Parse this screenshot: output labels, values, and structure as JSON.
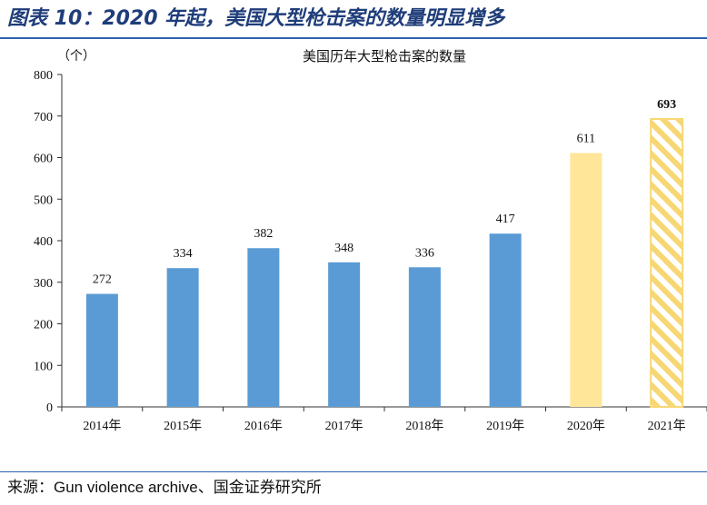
{
  "figure_title": "图表 10：2020 年起，美国大型枪击案的数量明显增多",
  "source": "来源：Gun violence archive、国金证券研究所",
  "colors": {
    "rule": "#2a62b0",
    "title": "#1f3d7a",
    "bar_blue": "#5b9bd5",
    "bar_yellow": "#ffe699",
    "hatch_yellow": "#f7d774"
  },
  "chart_data": {
    "type": "bar",
    "title": "美国历年大型枪击案的数量",
    "unit_label": "（个）",
    "categories": [
      "2014年",
      "2015年",
      "2016年",
      "2017年",
      "2018年",
      "2019年",
      "2020年",
      "2021年"
    ],
    "values": [
      272,
      334,
      382,
      348,
      336,
      417,
      611,
      693
    ],
    "bar_styles": [
      "solid-blue",
      "solid-blue",
      "solid-blue",
      "solid-blue",
      "solid-blue",
      "solid-blue",
      "solid-yellow",
      "hatched-yellow"
    ],
    "bold_labels": [
      false,
      false,
      false,
      false,
      false,
      false,
      false,
      true
    ],
    "ylim": [
      0,
      800
    ],
    "yticks": [
      0,
      100,
      200,
      300,
      400,
      500,
      600,
      700,
      800
    ],
    "grid": false,
    "legend": "none"
  }
}
